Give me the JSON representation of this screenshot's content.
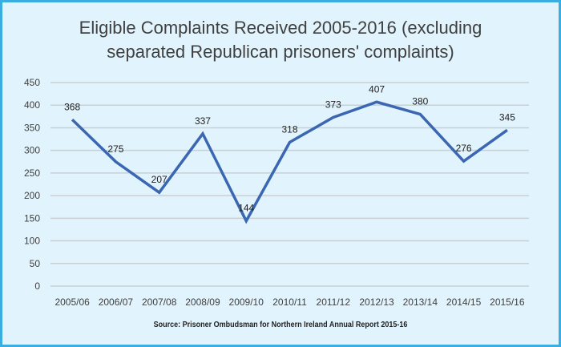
{
  "chart_data": {
    "type": "line",
    "title": "Eligible Complaints Received 2005-2016 (excluding separated Republican prisoners' complaints)",
    "title_lines": [
      "Eligible Complaints Received 2005-2016 (excluding",
      "separated Republican prisoners' complaints)"
    ],
    "categories": [
      "2005/06",
      "2006/07",
      "2007/08",
      "2008/09",
      "2009/10",
      "2010/11",
      "2011/12",
      "2012/13",
      "2013/14",
      "2014/15",
      "2015/16"
    ],
    "series": [
      {
        "name": "Eligible Complaints",
        "values": [
          368,
          275,
          207,
          337,
          144,
          318,
          373,
          407,
          380,
          276,
          345
        ],
        "color": "#3a66b2"
      }
    ],
    "xlabel": "",
    "ylabel": "",
    "ylim": [
      0,
      450
    ],
    "yticks": [
      0,
      50,
      100,
      150,
      200,
      250,
      300,
      350,
      400,
      450
    ],
    "grid": true,
    "legend": "none",
    "data_labels": true,
    "source": "Source: Prisoner Ombudsman for Northern Ireland Annual Report 2015-16"
  },
  "colors": {
    "frame": "#3aaee0",
    "background": "#e1f3fc",
    "grid": "#c9cfd2",
    "line": "#3a66b2"
  }
}
